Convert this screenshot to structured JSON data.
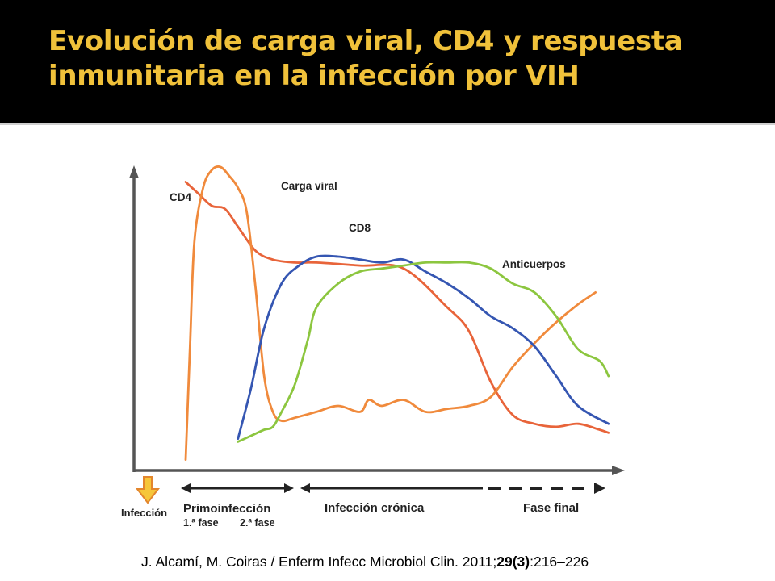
{
  "slide": {
    "title": "Evolución de carga viral, CD4 y respuesta inmunitaria en la infección por VIH"
  },
  "chart_data": {
    "type": "line",
    "xlabel": "",
    "ylabel": "",
    "series": [
      {
        "name": "CD4",
        "color": "#e8643a",
        "x": [
          0,
          3,
          6,
          9,
          12,
          16,
          20,
          25,
          30,
          40,
          50,
          60,
          65,
          70,
          75,
          80,
          85,
          90,
          95,
          97
        ],
        "y": [
          95,
          91,
          87,
          86,
          80,
          72,
          69,
          68,
          68,
          67,
          66,
          53,
          45,
          28,
          17,
          14,
          13,
          14,
          12,
          11
        ]
      },
      {
        "name": "Carga viral",
        "color": "#f08a3c",
        "x": [
          0,
          1,
          2,
          4,
          6,
          8,
          10,
          12,
          14,
          16,
          18,
          20,
          22,
          25,
          30,
          35,
          40,
          42,
          45,
          50,
          55,
          60,
          65,
          70,
          75,
          80,
          85,
          90,
          94
        ],
        "y": [
          2,
          40,
          75,
          93,
          99,
          100,
          97,
          93,
          85,
          60,
          30,
          18,
          15,
          16,
          18,
          20,
          18,
          22,
          20,
          22,
          18,
          19,
          20,
          23,
          33,
          41,
          48,
          54,
          58
        ]
      },
      {
        "name": "CD8",
        "color": "#3556b2",
        "x": [
          12,
          15,
          18,
          22,
          26,
          30,
          35,
          40,
          45,
          50,
          55,
          60,
          65,
          70,
          75,
          80,
          85,
          90,
          97
        ],
        "y": [
          9,
          26,
          46,
          61,
          67,
          70,
          70,
          69,
          68,
          69,
          65,
          61,
          56,
          50,
          46,
          40,
          30,
          20,
          14
        ]
      },
      {
        "name": "Anticuerpos",
        "color": "#8cc63f",
        "x": [
          12,
          15,
          18,
          20,
          22,
          25,
          28,
          30,
          35,
          40,
          45,
          50,
          55,
          60,
          65,
          70,
          75,
          80,
          85,
          90,
          95,
          97
        ],
        "y": [
          8,
          10,
          12,
          13,
          18,
          27,
          42,
          53,
          61,
          65,
          66,
          67,
          68,
          68,
          68,
          66,
          61,
          58,
          50,
          39,
          35,
          30
        ]
      }
    ],
    "annotations": [
      "CD4",
      "Carga viral",
      "CD8",
      "Anticuerpos"
    ],
    "phases": [
      {
        "label": "Infección"
      },
      {
        "label": "Primoinfección",
        "sub": [
          "1.ª fase",
          "2.ª fase"
        ]
      },
      {
        "label": "Infección crónica"
      },
      {
        "label": "Fase final"
      }
    ],
    "grid": false,
    "legend": "none"
  },
  "citation": {
    "authors": "J. Alcamí, M. Coiras / Enferm Infecc Microbiol Clin. 2011;",
    "volume_issue": "29(3)",
    "pages": ":216–226"
  }
}
